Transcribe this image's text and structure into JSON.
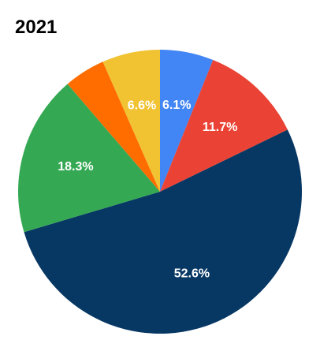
{
  "chart_data": {
    "type": "pie",
    "title": "2021",
    "start_angle_deg": 0,
    "direction": "clockwise",
    "slices": [
      {
        "value": 6.1,
        "label": "6.1%",
        "color": "#4285f4"
      },
      {
        "value": 11.7,
        "label": "11.7%",
        "color": "#ea4335"
      },
      {
        "value": 52.6,
        "label": "52.6%",
        "color": "#073763"
      },
      {
        "value": 18.3,
        "label": "18.3%",
        "color": "#34a853"
      },
      {
        "value": 4.7,
        "label": "",
        "color": "#ff6d01"
      },
      {
        "value": 6.6,
        "label": "6.6%",
        "color": "#f1c232"
      }
    ]
  }
}
